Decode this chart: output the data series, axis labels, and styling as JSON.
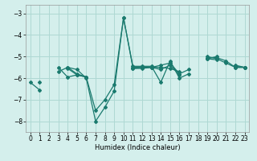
{
  "xlabel": "Humidex (Indice chaleur)",
  "xlim": [
    -0.5,
    23.5
  ],
  "ylim": [
    -8.5,
    -2.6
  ],
  "yticks": [
    -8,
    -7,
    -6,
    -5,
    -4,
    -3
  ],
  "xticks": [
    0,
    1,
    2,
    3,
    4,
    5,
    6,
    7,
    8,
    9,
    10,
    11,
    12,
    13,
    14,
    15,
    16,
    17,
    18,
    19,
    20,
    21,
    22,
    23
  ],
  "bg_color": "#d4efec",
  "grid_color": "#aed8d3",
  "line_color": "#1a7a6e",
  "series": [
    [
      -6.2,
      -6.55,
      null,
      -5.5,
      -5.95,
      -5.85,
      -5.95,
      null,
      null,
      null,
      null,
      -5.55,
      -5.5,
      -5.5,
      -5.5,
      -5.55,
      -5.7,
      null,
      null,
      -5.05,
      -5.05,
      -5.2,
      -5.5,
      -5.5
    ],
    [
      null,
      null,
      null,
      null,
      -5.55,
      -5.85,
      -5.95,
      null,
      null,
      null,
      null,
      -5.55,
      -5.55,
      -5.5,
      -5.6,
      -5.4,
      -5.85,
      null,
      null,
      -5.1,
      -5.15,
      null,
      -5.45,
      -5.5
    ],
    [
      null,
      -6.2,
      null,
      -5.7,
      -5.5,
      -5.6,
      -6.0,
      -8.0,
      -7.35,
      -6.6,
      -3.2,
      -5.45,
      -5.45,
      -5.45,
      -6.2,
      -5.2,
      -6.0,
      -5.8,
      null,
      -5.0,
      -5.1,
      -5.3,
      -5.5,
      -5.5
    ],
    [
      null,
      null,
      null,
      null,
      -5.5,
      -5.8,
      -5.95,
      -7.5,
      -7.0,
      -6.3,
      -3.2,
      -5.5,
      -5.5,
      -5.5,
      -5.4,
      -5.3,
      -5.8,
      -5.6,
      null,
      -5.1,
      -5.0,
      null,
      -5.4,
      -5.5
    ]
  ]
}
